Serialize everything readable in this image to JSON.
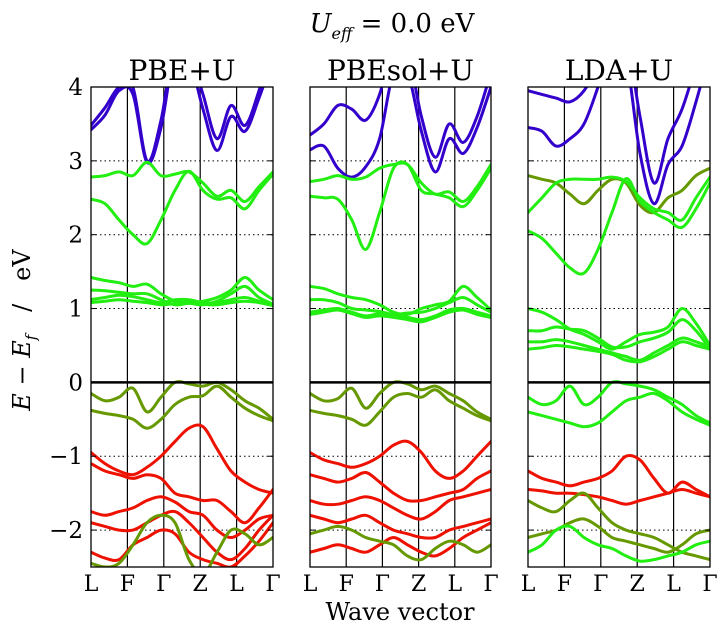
{
  "figure": {
    "suptitle": "U_eff = 0.0 eV",
    "suptitle_sym": "U",
    "suptitle_sub": "eff",
    "suptitle_rest": " = 0.0 eV",
    "ylabel": "E − E_f   /   eV",
    "ylabel_sym_E1": "E",
    "ylabel_minus": " − ",
    "ylabel_sym_E2": "E",
    "ylabel_sub": "f",
    "ylabel_unit": "   /   eV",
    "xlabel": "Wave vector"
  },
  "chart_data": [
    {
      "type": "line",
      "title": "PBE+U",
      "x_ticks": [
        "L",
        "F",
        "Γ",
        "Z",
        "L",
        "Γ"
      ],
      "ylim": [
        -2.5,
        4.0
      ],
      "y_ticks": [
        "−2",
        "−1",
        "0",
        "1",
        "2",
        "3",
        "4"
      ],
      "y_tick_values": [
        -2,
        -1,
        0,
        1,
        2,
        3,
        4
      ],
      "grid": "horizontal dotted",
      "fermi_level": 0,
      "series": [
        {
          "color": "#3300cc",
          "values": [
            3.48,
            3.72,
            4.0,
            3.99,
            3.0,
            3.55,
            4.6,
            4.5,
            3.9,
            3.3,
            3.75,
            3.48,
            3.95,
            4.6
          ]
        },
        {
          "color": "#3300cc",
          "values": [
            3.42,
            3.62,
            3.95,
            3.9,
            2.98,
            3.45,
            4.5,
            4.4,
            3.7,
            3.14,
            3.6,
            3.4,
            3.85,
            4.4
          ]
        },
        {
          "color": "#22ee11",
          "values": [
            2.78,
            2.8,
            2.85,
            2.8,
            2.98,
            2.8,
            2.82,
            2.85,
            2.7,
            2.52,
            2.6,
            2.45,
            2.65,
            2.85
          ]
        },
        {
          "color": "#22ee11",
          "values": [
            2.48,
            2.42,
            2.2,
            2.0,
            1.88,
            2.2,
            2.6,
            2.86,
            2.6,
            2.48,
            2.5,
            2.35,
            2.6,
            2.82
          ]
        },
        {
          "color": "#22ee11",
          "values": [
            1.42,
            1.38,
            1.35,
            1.3,
            1.33,
            1.2,
            1.1,
            1.08,
            1.1,
            1.15,
            1.25,
            1.42,
            1.25,
            1.12
          ]
        },
        {
          "color": "#22ee11",
          "values": [
            1.25,
            1.24,
            1.22,
            1.2,
            1.2,
            1.12,
            1.05,
            1.07,
            1.05,
            1.1,
            1.2,
            1.3,
            1.15,
            1.06
          ]
        },
        {
          "color": "#22ee11",
          "values": [
            1.12,
            1.15,
            1.18,
            1.16,
            1.12,
            1.08,
            1.12,
            1.12,
            1.08,
            1.08,
            1.12,
            1.15,
            1.1,
            1.05
          ]
        },
        {
          "color": "#22ee11",
          "values": [
            1.08,
            1.1,
            1.12,
            1.1,
            1.08,
            1.05,
            1.07,
            1.09,
            1.06,
            1.05,
            1.08,
            1.1,
            1.08,
            1.04
          ]
        },
        {
          "color": "#669900",
          "values": [
            -0.15,
            -0.25,
            -0.2,
            -0.08,
            -0.4,
            -0.2,
            0.0,
            -0.02,
            -0.05,
            0.0,
            -0.1,
            -0.25,
            -0.35,
            -0.5
          ]
        },
        {
          "color": "#669900",
          "values": [
            -0.38,
            -0.42,
            -0.45,
            -0.5,
            -0.62,
            -0.5,
            -0.3,
            -0.2,
            -0.18,
            -0.05,
            -0.2,
            -0.35,
            -0.45,
            -0.52
          ]
        },
        {
          "color": "#ee1100",
          "values": [
            -0.95,
            -1.1,
            -1.2,
            -1.25,
            -1.15,
            -1.0,
            -0.8,
            -0.62,
            -0.6,
            -0.9,
            -1.2,
            -1.35,
            -1.45,
            -1.5
          ]
        },
        {
          "color": "#ee1100",
          "values": [
            -1.1,
            -1.2,
            -1.25,
            -1.3,
            -1.25,
            -1.3,
            -1.5,
            -1.55,
            -1.6,
            -1.6,
            -1.75,
            -1.9,
            -1.7,
            -1.45
          ]
        },
        {
          "color": "#ee1100",
          "values": [
            -1.75,
            -1.8,
            -1.75,
            -1.7,
            -1.6,
            -1.55,
            -1.62,
            -1.75,
            -1.8,
            -2.0,
            -2.1,
            -2.0,
            -1.85,
            -1.8
          ]
        },
        {
          "color": "#ee1100",
          "values": [
            -1.9,
            -1.95,
            -2.0,
            -2.0,
            -1.9,
            -1.8,
            -1.75,
            -1.9,
            -2.1,
            -2.3,
            -2.4,
            -2.25,
            -2.0,
            -1.8
          ]
        },
        {
          "color": "#ee1100",
          "values": [
            -2.3,
            -2.38,
            -2.4,
            -2.2,
            -2.1,
            -2.0,
            -2.05,
            -2.3,
            -2.4,
            -2.45,
            -2.5,
            -2.35,
            -2.15,
            -1.9
          ]
        },
        {
          "color": "#669900",
          "values": [
            -2.45,
            -2.5,
            -2.45,
            -2.2,
            -1.9,
            -1.8,
            -1.9,
            -2.4,
            -2.6,
            -2.3,
            -2.0,
            -2.05,
            -2.2,
            -2.1
          ]
        }
      ]
    },
    {
      "type": "line",
      "title": "PBEsol+U",
      "x_ticks": [
        "L",
        "F",
        "Γ",
        "Z",
        "L",
        "Γ"
      ],
      "ylim": [
        -2.5,
        4.0
      ],
      "y_ticks": [
        "−2",
        "−1",
        "0",
        "1",
        "2",
        "3",
        "4"
      ],
      "y_tick_values": [
        -2,
        -1,
        0,
        1,
        2,
        3,
        4
      ],
      "grid": "horizontal dotted",
      "fermi_level": 0,
      "series": [
        {
          "color": "#3300cc",
          "values": [
            3.35,
            3.5,
            3.75,
            3.7,
            3.55,
            3.9,
            4.6,
            4.5,
            3.6,
            3.05,
            3.5,
            3.25,
            3.6,
            4.2
          ]
        },
        {
          "color": "#3300cc",
          "values": [
            3.15,
            3.2,
            2.9,
            2.78,
            2.92,
            3.3,
            4.2,
            4.2,
            3.4,
            2.85,
            3.3,
            3.1,
            3.45,
            4.0
          ]
        },
        {
          "color": "#22ee11",
          "values": [
            2.72,
            2.75,
            2.8,
            2.75,
            2.78,
            2.9,
            2.95,
            2.95,
            2.7,
            2.55,
            2.58,
            2.45,
            2.65,
            2.95
          ]
        },
        {
          "color": "#22ee11",
          "values": [
            2.52,
            2.5,
            2.48,
            2.2,
            1.8,
            2.3,
            2.9,
            2.95,
            2.6,
            2.55,
            2.5,
            2.38,
            2.6,
            2.9
          ]
        },
        {
          "color": "#22ee11",
          "values": [
            1.3,
            1.27,
            1.2,
            1.15,
            1.12,
            1.05,
            0.95,
            0.92,
            1.0,
            1.05,
            1.1,
            1.3,
            1.15,
            0.98
          ]
        },
        {
          "color": "#22ee11",
          "values": [
            1.12,
            1.12,
            1.08,
            1.0,
            0.98,
            0.96,
            0.92,
            0.94,
            0.95,
            1.0,
            1.08,
            1.15,
            1.05,
            0.95
          ]
        },
        {
          "color": "#22ee11",
          "values": [
            0.95,
            0.98,
            1.0,
            0.95,
            0.9,
            0.93,
            0.9,
            0.88,
            0.85,
            0.9,
            0.98,
            1.0,
            0.95,
            0.9
          ]
        },
        {
          "color": "#22ee11",
          "values": [
            0.92,
            0.95,
            0.98,
            0.93,
            0.88,
            0.9,
            0.88,
            0.85,
            0.82,
            0.88,
            0.95,
            0.98,
            0.92,
            0.88
          ]
        },
        {
          "color": "#669900",
          "values": [
            -0.15,
            -0.25,
            -0.22,
            -0.08,
            -0.35,
            -0.15,
            0.0,
            -0.02,
            -0.1,
            -0.05,
            -0.15,
            -0.25,
            -0.4,
            -0.5
          ]
        },
        {
          "color": "#669900",
          "values": [
            -0.38,
            -0.42,
            -0.45,
            -0.5,
            -0.58,
            -0.4,
            -0.2,
            -0.15,
            -0.2,
            -0.1,
            -0.25,
            -0.35,
            -0.45,
            -0.52
          ]
        },
        {
          "color": "#ee1100",
          "values": [
            -0.95,
            -1.05,
            -1.1,
            -1.15,
            -1.1,
            -1.0,
            -0.85,
            -0.8,
            -0.95,
            -1.2,
            -1.3,
            -1.2,
            -1.0,
            -0.8
          ]
        },
        {
          "color": "#ee1100",
          "values": [
            -1.25,
            -1.3,
            -1.35,
            -1.3,
            -1.22,
            -1.35,
            -1.5,
            -1.6,
            -1.6,
            -1.55,
            -1.5,
            -1.45,
            -1.3,
            -1.2
          ]
        },
        {
          "color": "#ee1100",
          "values": [
            -1.6,
            -1.65,
            -1.65,
            -1.6,
            -1.55,
            -1.6,
            -1.7,
            -1.8,
            -1.85,
            -1.75,
            -1.6,
            -1.55,
            -1.5,
            -1.45
          ]
        },
        {
          "color": "#ee1100",
          "values": [
            -1.8,
            -1.85,
            -1.9,
            -1.85,
            -1.8,
            -1.9,
            -2.0,
            -2.05,
            -2.1,
            -2.1,
            -2.0,
            -1.95,
            -1.9,
            -1.85
          ]
        },
        {
          "color": "#ee1100",
          "values": [
            -2.3,
            -2.25,
            -2.2,
            -2.25,
            -2.3,
            -2.2,
            -2.1,
            -2.2,
            -2.3,
            -2.35,
            -2.25,
            -2.1,
            -2.0,
            -1.9
          ]
        },
        {
          "color": "#669900",
          "values": [
            -2.05,
            -2.0,
            -1.95,
            -2.0,
            -2.1,
            -2.15,
            -2.2,
            -2.35,
            -2.4,
            -2.25,
            -2.15,
            -2.2,
            -2.3,
            -2.2
          ]
        }
      ]
    },
    {
      "type": "line",
      "title": "LDA+U",
      "x_ticks": [
        "L",
        "F",
        "Γ",
        "Z",
        "L",
        "Γ"
      ],
      "ylim": [
        -2.5,
        4.0
      ],
      "y_ticks": [
        "−2",
        "−1",
        "0",
        "1",
        "2",
        "3",
        "4"
      ],
      "y_tick_values": [
        -2,
        -1,
        0,
        1,
        2,
        3,
        4
      ],
      "grid": "horizontal dotted",
      "fermi_level": 0,
      "series": [
        {
          "color": "#3300cc",
          "values": [
            3.95,
            3.9,
            3.85,
            3.8,
            3.95,
            4.3,
            4.8,
            4.7,
            3.6,
            2.7,
            3.3,
            3.7,
            4.3,
            5.0
          ]
        },
        {
          "color": "#3300cc",
          "values": [
            3.45,
            3.4,
            3.2,
            3.3,
            3.5,
            4.0,
            4.6,
            4.4,
            3.1,
            2.42,
            2.95,
            3.2,
            3.8,
            4.5
          ]
        },
        {
          "color": "#669900",
          "values": [
            2.8,
            2.75,
            2.7,
            2.55,
            2.42,
            2.6,
            2.75,
            2.7,
            2.4,
            2.3,
            2.5,
            2.6,
            2.8,
            2.9
          ]
        },
        {
          "color": "#22ee11",
          "values": [
            2.3,
            2.5,
            2.7,
            2.75,
            2.75,
            2.75,
            2.78,
            2.72,
            2.5,
            2.35,
            2.3,
            2.2,
            2.5,
            2.78
          ]
        },
        {
          "color": "#22ee11",
          "values": [
            2.05,
            1.95,
            1.75,
            1.55,
            1.48,
            1.8,
            2.3,
            2.76,
            2.45,
            2.3,
            2.2,
            2.1,
            2.35,
            2.7
          ]
        },
        {
          "color": "#22ee11",
          "values": [
            1.0,
            0.95,
            0.85,
            0.72,
            0.65,
            0.55,
            0.45,
            0.55,
            0.65,
            0.68,
            0.75,
            1.0,
            0.8,
            0.5
          ]
        },
        {
          "color": "#22ee11",
          "values": [
            0.7,
            0.7,
            0.75,
            0.72,
            0.7,
            0.6,
            0.48,
            0.48,
            0.55,
            0.6,
            0.68,
            0.85,
            0.7,
            0.45
          ]
        },
        {
          "color": "#22ee11",
          "values": [
            0.55,
            0.55,
            0.58,
            0.55,
            0.5,
            0.45,
            0.4,
            0.35,
            0.3,
            0.4,
            0.5,
            0.6,
            0.55,
            0.48
          ]
        },
        {
          "color": "#22ee11",
          "values": [
            0.45,
            0.47,
            0.5,
            0.48,
            0.45,
            0.42,
            0.38,
            0.3,
            0.28,
            0.35,
            0.45,
            0.55,
            0.5,
            0.45
          ]
        },
        {
          "color": "#22ee11",
          "values": [
            -0.2,
            -0.3,
            -0.25,
            -0.05,
            -0.3,
            -0.2,
            0.0,
            -0.02,
            -0.05,
            -0.1,
            -0.2,
            -0.3,
            -0.45,
            -0.55
          ]
        },
        {
          "color": "#22ee11",
          "values": [
            -0.4,
            -0.45,
            -0.5,
            -0.55,
            -0.6,
            -0.55,
            -0.4,
            -0.25,
            -0.2,
            -0.15,
            -0.25,
            -0.4,
            -0.5,
            -0.58
          ]
        },
        {
          "color": "#ee1100",
          "values": [
            -1.2,
            -1.3,
            -1.35,
            -1.4,
            -1.35,
            -1.3,
            -1.2,
            -1.0,
            -1.05,
            -1.3,
            -1.5,
            -1.35,
            -1.45,
            -1.55
          ]
        },
        {
          "color": "#ee1100",
          "values": [
            -1.45,
            -1.47,
            -1.5,
            -1.5,
            -1.52,
            -1.55,
            -1.6,
            -1.65,
            -1.6,
            -1.55,
            -1.5,
            -1.45,
            -1.5,
            -1.55
          ]
        },
        {
          "color": "#669900",
          "values": [
            -1.6,
            -1.7,
            -1.75,
            -1.6,
            -1.5,
            -1.7,
            -1.9,
            -2.0,
            -2.05,
            -2.1,
            -2.2,
            -2.3,
            -2.35,
            -2.4
          ]
        },
        {
          "color": "#669900",
          "values": [
            -2.1,
            -2.05,
            -2.0,
            -1.9,
            -1.85,
            -1.95,
            -2.1,
            -2.15,
            -2.2,
            -2.25,
            -2.3,
            -2.2,
            -2.05,
            -2.0
          ]
        },
        {
          "color": "#22ee11",
          "values": [
            -2.3,
            -2.2,
            -2.0,
            -1.95,
            -2.1,
            -2.2,
            -2.25,
            -2.35,
            -2.42,
            -2.4,
            -2.35,
            -2.3,
            -2.2,
            -2.15
          ]
        }
      ]
    }
  ]
}
